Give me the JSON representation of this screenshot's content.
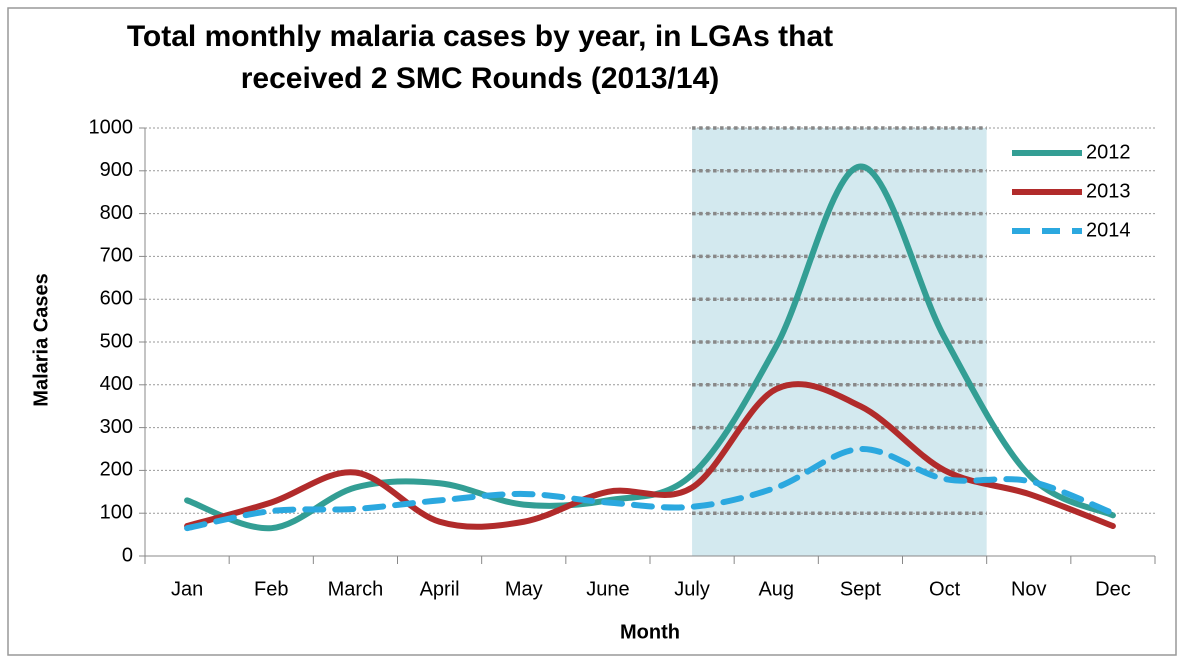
{
  "chart_data": {
    "type": "line",
    "title": "Total monthly malaria cases by year, in LGAs that received 2 SMC Rounds (2013/14)",
    "x_label": "Month",
    "y_label": "Malaria Cases",
    "categories": [
      "Jan",
      "Feb",
      "March",
      "April",
      "May",
      "June",
      "July",
      "Aug",
      "Sept",
      "Oct",
      "Nov",
      "Dec"
    ],
    "series": [
      {
        "name": "2012",
        "color": "#339e94",
        "dash": false,
        "values": [
          130,
          65,
          160,
          170,
          120,
          130,
          190,
          490,
          910,
          510,
          190,
          95
        ]
      },
      {
        "name": "2013",
        "color": "#b12b2b",
        "dash": false,
        "values": [
          70,
          125,
          195,
          80,
          80,
          150,
          160,
          390,
          350,
          200,
          145,
          70
        ]
      },
      {
        "name": "2014",
        "color": "#2ba8df",
        "dash": true,
        "values": [
          65,
          105,
          110,
          130,
          145,
          125,
          115,
          160,
          250,
          180,
          175,
          100
        ]
      }
    ],
    "ylim": [
      0,
      1000
    ],
    "yticks": [
      0,
      100,
      200,
      300,
      400,
      500,
      600,
      700,
      800,
      900,
      1000
    ],
    "grid": true,
    "legend": "top-right",
    "smooth": true
  }
}
